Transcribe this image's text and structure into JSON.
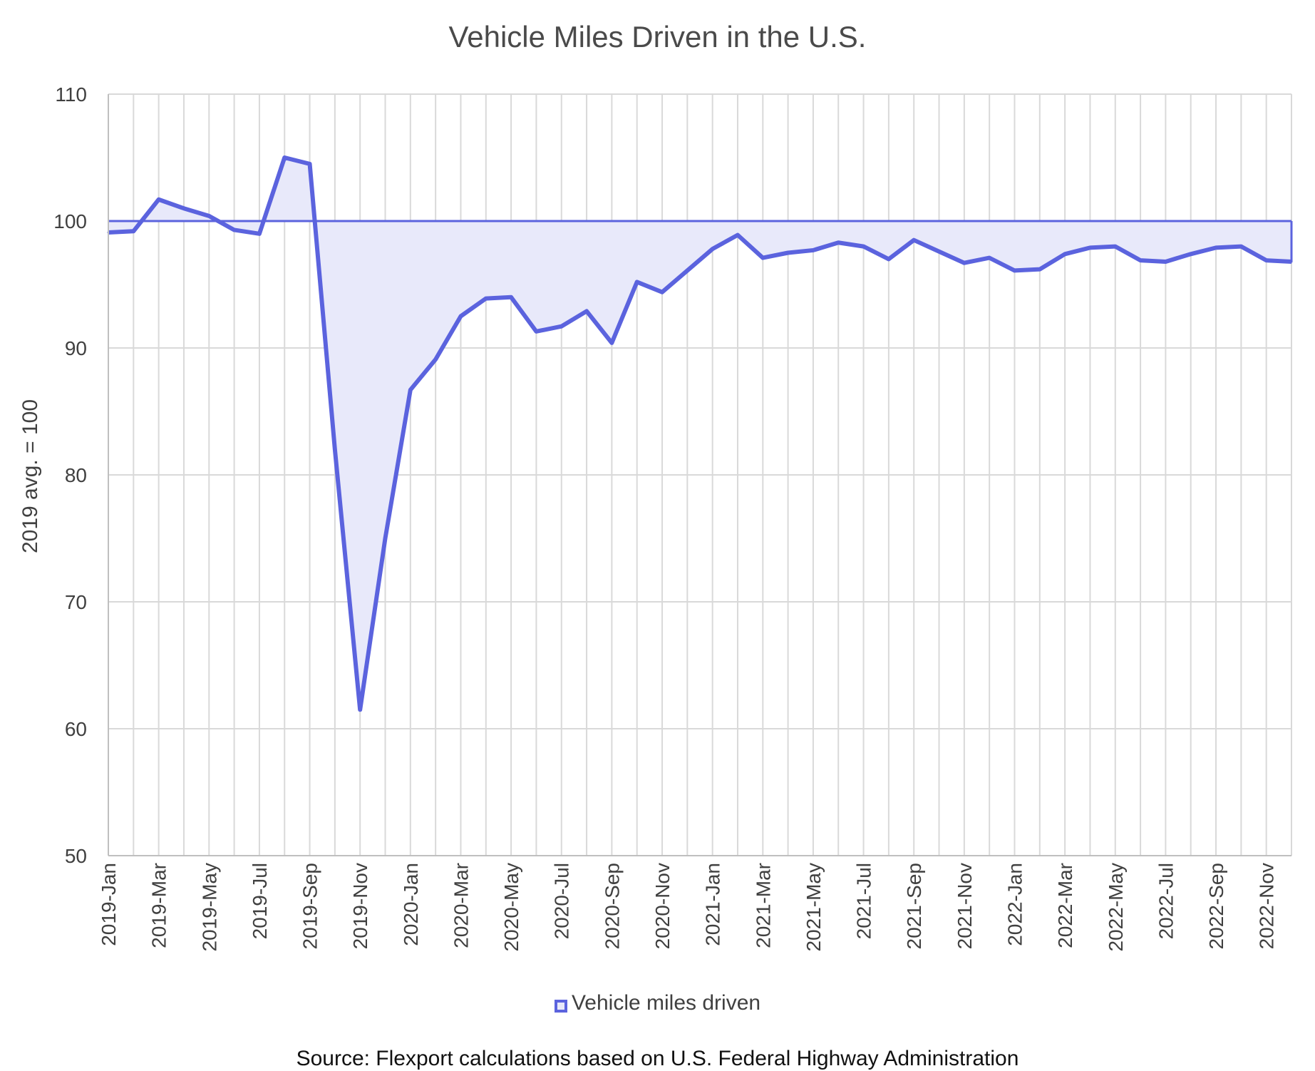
{
  "chart_data": {
    "type": "area",
    "title": "Vehicle Miles Driven in the U.S.",
    "xlabel": "",
    "ylabel": "2019 avg. = 100",
    "ylim": [
      50,
      110
    ],
    "yticks": [
      50,
      60,
      70,
      80,
      90,
      100,
      110
    ],
    "baseline": 100,
    "grid": true,
    "legend_position": "bottom",
    "colors": {
      "line": "#5b63de",
      "fill": "#e8e9fa",
      "grid": "#d9d9d9"
    },
    "x": [
      "2019-Jan",
      "2019-Feb",
      "2019-Mar",
      "2019-Apr",
      "2019-May",
      "2019-Jun",
      "2019-Jul",
      "2019-Aug",
      "2019-Sep",
      "2019-Oct",
      "2019-Nov",
      "2019-Dec",
      "2020-Jan",
      "2020-Feb",
      "2020-Mar",
      "2020-Apr",
      "2020-May",
      "2020-Jun",
      "2020-Jul",
      "2020-Aug",
      "2020-Sep",
      "2020-Oct",
      "2020-Nov",
      "2020-Dec",
      "2021-Jan",
      "2021-Feb",
      "2021-Mar",
      "2021-Apr",
      "2021-May",
      "2021-Jun",
      "2021-Jul",
      "2021-Aug",
      "2021-Sep",
      "2021-Oct",
      "2021-Nov",
      "2021-Dec",
      "2022-Jan",
      "2022-Feb",
      "2022-Mar",
      "2022-Apr",
      "2022-May",
      "2022-Jun",
      "2022-Jul",
      "2022-Aug",
      "2022-Sep",
      "2022-Oct",
      "2022-Nov",
      "2022-Dec"
    ],
    "x_tick_labels": [
      "2019-Jan",
      "2019-Mar",
      "2019-May",
      "2019-Jul",
      "2019-Sep",
      "2019-Nov",
      "2020-Jan",
      "2020-Mar",
      "2020-May",
      "2020-Jul",
      "2020-Sep",
      "2020-Nov",
      "2021-Jan",
      "2021-Mar",
      "2021-May",
      "2021-Jul",
      "2021-Sep",
      "2021-Nov",
      "2022-Jan",
      "2022-Mar",
      "2022-May",
      "2022-Jul",
      "2022-Sep",
      "2022-Nov"
    ],
    "series": [
      {
        "name": "Vehicle miles driven",
        "values": [
          99.1,
          99.2,
          101.7,
          101.0,
          100.4,
          99.3,
          99.0,
          105.0,
          104.5,
          82.0,
          61.5,
          75.0,
          86.7,
          89.1,
          92.5,
          93.9,
          94.0,
          91.3,
          91.7,
          92.9,
          90.4,
          95.2,
          94.4,
          96.1,
          97.8,
          98.9,
          97.1,
          97.5,
          97.7,
          98.3,
          98.0,
          97.0,
          98.5,
          97.6,
          96.7,
          97.1,
          96.1,
          96.2,
          97.4,
          97.9,
          98.0,
          96.9,
          96.8,
          97.4,
          97.9,
          98.0,
          96.9,
          96.8
        ]
      }
    ]
  },
  "legend": {
    "label": "Vehicle miles driven"
  },
  "source": "Source: Flexport calculations based on U.S. Federal Highway Administration"
}
